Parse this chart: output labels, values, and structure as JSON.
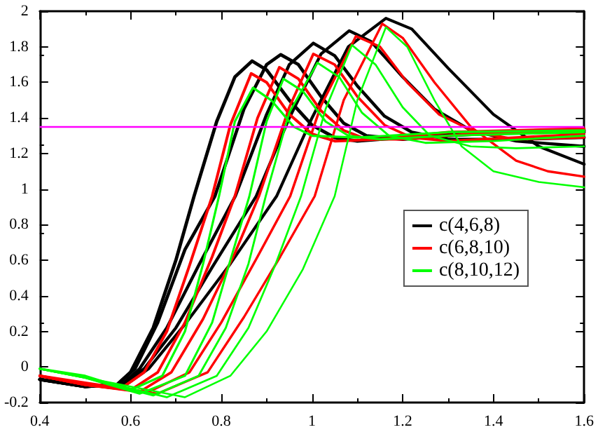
{
  "chart_data": {
    "type": "line",
    "xlim": [
      0.4,
      1.6
    ],
    "xticks": [
      0.4,
      0.6,
      0.8,
      1,
      1.2,
      1.4,
      1.6
    ],
    "ylim": [
      -0.2,
      2
    ],
    "yticks": [
      -0.2,
      0,
      0.2,
      0.4,
      0.6,
      0.8,
      1,
      1.2,
      1.4,
      1.6,
      1.8,
      2
    ],
    "grid": false,
    "legend": "right",
    "marker": "none",
    "line_style": "solid",
    "ref_lines": [
      {
        "axis": "y",
        "value": 1.35,
        "color": "#ff00ff"
      }
    ],
    "series": [
      {
        "name": "c(4,6,8)",
        "color": "#000000",
        "x": [
          0.4,
          0.5,
          0.57,
          0.6,
          0.65,
          0.7,
          0.74,
          0.79,
          0.83,
          0.868,
          0.9,
          0.95,
          1.0,
          1.05,
          1.1,
          1.2,
          1.4,
          1.6
        ],
        "values": [
          -0.07,
          -0.11,
          -0.1,
          -0.03,
          0.22,
          0.6,
          0.96,
          1.38,
          1.63,
          1.72,
          1.67,
          1.5,
          1.36,
          1.29,
          1.27,
          1.29,
          1.32,
          1.33
        ]
      },
      {
        "color": "#000000",
        "x": [
          0.4,
          0.5,
          0.57,
          0.61,
          0.66,
          0.72,
          0.786,
          0.85,
          0.9,
          0.931,
          0.97,
          1.02,
          1.07,
          1.12,
          1.2,
          1.3,
          1.45,
          1.6
        ],
        "values": [
          -0.07,
          -0.11,
          -0.1,
          -0.01,
          0.25,
          0.66,
          0.96,
          1.45,
          1.7,
          1.756,
          1.7,
          1.52,
          1.37,
          1.3,
          1.28,
          1.3,
          1.32,
          1.32
        ]
      },
      {
        "color": "#000000",
        "x": [
          0.4,
          0.5,
          0.58,
          0.62,
          0.68,
          0.75,
          0.831,
          0.9,
          0.95,
          1.003,
          1.05,
          1.1,
          1.16,
          1.22,
          1.3,
          1.45,
          1.6
        ],
        "values": [
          -0.07,
          -0.11,
          -0.1,
          -0.01,
          0.22,
          0.57,
          0.96,
          1.42,
          1.7,
          1.82,
          1.75,
          1.58,
          1.41,
          1.32,
          1.28,
          1.28,
          1.29
        ]
      },
      {
        "color": "#000000",
        "x": [
          0.4,
          0.5,
          0.58,
          0.63,
          0.7,
          0.78,
          0.877,
          0.95,
          1.02,
          1.082,
          1.13,
          1.2,
          1.27,
          1.35,
          1.45,
          1.6
        ],
        "values": [
          -0.07,
          -0.11,
          -0.1,
          -0.01,
          0.22,
          0.56,
          0.96,
          1.4,
          1.76,
          1.89,
          1.83,
          1.63,
          1.45,
          1.33,
          1.27,
          1.24
        ]
      },
      {
        "color": "#000000",
        "x": [
          0.4,
          0.5,
          0.59,
          0.64,
          0.72,
          0.82,
          0.922,
          1.0,
          1.08,
          1.163,
          1.22,
          1.3,
          1.4,
          1.5,
          1.6
        ],
        "values": [
          -0.07,
          -0.11,
          -0.1,
          -0.01,
          0.24,
          0.58,
          0.96,
          1.4,
          1.8,
          1.96,
          1.9,
          1.68,
          1.42,
          1.24,
          1.14
        ]
      },
      {
        "name": "c(6,8,10)",
        "color": "#ff0000",
        "x": [
          0.4,
          0.5,
          0.58,
          0.63,
          0.68,
          0.73,
          0.78,
          0.82,
          0.866,
          0.9,
          0.95,
          1.0,
          1.05,
          1.15,
          1.3,
          1.6
        ],
        "values": [
          -0.05,
          -0.09,
          -0.12,
          -0.03,
          0.2,
          0.57,
          0.96,
          1.36,
          1.65,
          1.6,
          1.42,
          1.31,
          1.27,
          1.28,
          1.32,
          1.34
        ]
      },
      {
        "color": "#ff0000",
        "x": [
          0.4,
          0.5,
          0.6,
          0.66,
          0.72,
          0.78,
          0.83,
          0.88,
          0.928,
          0.97,
          1.02,
          1.07,
          1.12,
          1.2,
          1.35,
          1.6
        ],
        "values": [
          -0.05,
          -0.1,
          -0.13,
          -0.03,
          0.25,
          0.62,
          0.96,
          1.4,
          1.685,
          1.62,
          1.44,
          1.33,
          1.28,
          1.28,
          1.31,
          1.33
        ]
      },
      {
        "color": "#ff0000",
        "x": [
          0.4,
          0.5,
          0.62,
          0.69,
          0.76,
          0.83,
          0.883,
          0.95,
          1.003,
          1.05,
          1.1,
          1.16,
          1.22,
          1.3,
          1.45,
          1.6
        ],
        "values": [
          -0.05,
          -0.1,
          -0.14,
          -0.03,
          0.27,
          0.64,
          0.96,
          1.46,
          1.76,
          1.7,
          1.52,
          1.36,
          1.29,
          1.27,
          1.29,
          1.31
        ]
      },
      {
        "color": "#ff0000",
        "x": [
          0.4,
          0.5,
          0.64,
          0.73,
          0.8,
          0.88,
          0.952,
          1.02,
          1.097,
          1.15,
          1.21,
          1.28,
          1.36,
          1.45,
          1.6
        ],
        "values": [
          -0.05,
          -0.1,
          -0.14,
          -0.03,
          0.25,
          0.62,
          0.96,
          1.47,
          1.86,
          1.8,
          1.6,
          1.42,
          1.32,
          1.28,
          1.29
        ]
      },
      {
        "color": "#ff0000",
        "x": [
          0.4,
          0.5,
          0.66,
          0.77,
          0.85,
          0.93,
          1.006,
          1.07,
          1.155,
          1.2,
          1.27,
          1.35,
          1.45,
          1.52,
          1.6
        ],
        "values": [
          -0.05,
          -0.1,
          -0.15,
          -0.03,
          0.28,
          0.62,
          0.96,
          1.5,
          1.93,
          1.85,
          1.6,
          1.35,
          1.16,
          1.1,
          1.07
        ]
      },
      {
        "name": "c(8,10,12)",
        "color": "#00ff00",
        "x": [
          0.4,
          0.5,
          0.6,
          0.67,
          0.72,
          0.76,
          0.795,
          0.83,
          0.87,
          0.91,
          0.96,
          1.0,
          1.1,
          1.3,
          1.6
        ],
        "values": [
          -0.01,
          -0.05,
          -0.13,
          -0.05,
          0.2,
          0.58,
          0.96,
          1.38,
          1.57,
          1.5,
          1.35,
          1.3,
          1.29,
          1.32,
          1.33
        ]
      },
      {
        "color": "#00ff00",
        "x": [
          0.4,
          0.5,
          0.62,
          0.72,
          0.78,
          0.82,
          0.862,
          0.9,
          0.937,
          0.98,
          1.03,
          1.08,
          1.15,
          1.3,
          1.6
        ],
        "values": [
          -0.01,
          -0.06,
          -0.15,
          -0.05,
          0.25,
          0.6,
          0.96,
          1.38,
          1.62,
          1.55,
          1.38,
          1.3,
          1.28,
          1.3,
          1.32
        ]
      },
      {
        "color": "#00ff00",
        "x": [
          0.4,
          0.5,
          0.65,
          0.75,
          0.81,
          0.86,
          0.898,
          0.95,
          1.012,
          1.06,
          1.11,
          1.17,
          1.25,
          1.4,
          1.6
        ],
        "values": [
          -0.01,
          -0.06,
          -0.16,
          -0.05,
          0.22,
          0.58,
          0.96,
          1.43,
          1.71,
          1.63,
          1.43,
          1.3,
          1.26,
          1.27,
          1.3
        ]
      },
      {
        "color": "#00ff00",
        "x": [
          0.4,
          0.5,
          0.68,
          0.79,
          0.86,
          0.92,
          0.976,
          1.03,
          1.088,
          1.14,
          1.2,
          1.26,
          1.35,
          1.45,
          1.6
        ],
        "values": [
          -0.01,
          -0.06,
          -0.17,
          -0.05,
          0.22,
          0.58,
          0.96,
          1.45,
          1.81,
          1.7,
          1.46,
          1.3,
          1.24,
          1.23,
          1.24
        ]
      },
      {
        "color": "#00ff00",
        "x": [
          0.4,
          0.5,
          0.72,
          0.82,
          0.9,
          0.98,
          1.05,
          1.1,
          1.163,
          1.21,
          1.27,
          1.33,
          1.4,
          1.5,
          1.6
        ],
        "values": [
          -0.01,
          -0.06,
          -0.17,
          -0.05,
          0.2,
          0.55,
          0.96,
          1.5,
          1.91,
          1.8,
          1.5,
          1.24,
          1.1,
          1.04,
          1.01
        ]
      }
    ]
  }
}
